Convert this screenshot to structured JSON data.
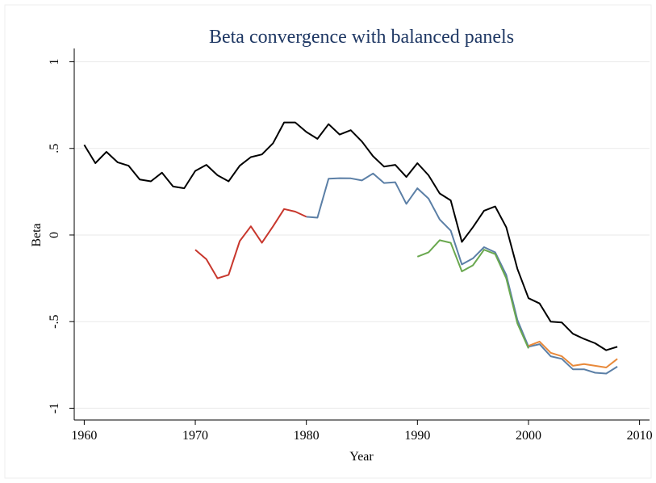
{
  "chart_data": {
    "type": "line",
    "title": "Beta convergence with balanced panels",
    "x_label": "Year",
    "y_label": "Beta",
    "x": [
      1960,
      1961,
      1962,
      1963,
      1964,
      1965,
      1966,
      1967,
      1968,
      1969,
      1970,
      1971,
      1972,
      1973,
      1974,
      1975,
      1976,
      1977,
      1978,
      1979,
      1980,
      1981,
      1982,
      1983,
      1984,
      1985,
      1986,
      1987,
      1988,
      1989,
      1990,
      1991,
      1992,
      1993,
      1994,
      1995,
      1996,
      1997,
      1998,
      1999,
      2000,
      2001,
      2002,
      2003,
      2004,
      2005,
      2006,
      2007,
      2008
    ],
    "series": [
      {
        "color": "#000000",
        "values": [
          0.52,
          0.415,
          0.48,
          0.42,
          0.4,
          0.32,
          0.31,
          0.36,
          0.28,
          0.27,
          0.37,
          0.405,
          0.345,
          0.31,
          0.4,
          0.45,
          0.465,
          0.53,
          0.65,
          0.65,
          0.595,
          0.555,
          0.64,
          0.58,
          0.605,
          0.54,
          0.455,
          0.395,
          0.405,
          0.335,
          0.415,
          0.345,
          0.24,
          0.2,
          -0.04,
          0.045,
          0.14,
          0.165,
          0.045,
          -0.195,
          -0.365,
          -0.395,
          -0.5,
          -0.505,
          -0.57,
          -0.6,
          -0.625,
          -0.665,
          -0.645
        ]
      },
      {
        "color": "#c8372d",
        "values": [
          null,
          null,
          null,
          null,
          null,
          null,
          null,
          null,
          null,
          null,
          -0.085,
          -0.14,
          -0.25,
          -0.23,
          -0.035,
          0.05,
          -0.045,
          0.05,
          0.15,
          0.135,
          0.105,
          null,
          null,
          null,
          null,
          null,
          null,
          null,
          null,
          null,
          null,
          null,
          null,
          null,
          null,
          null,
          null,
          null,
          null,
          null,
          null,
          null,
          null,
          null,
          null,
          null,
          null,
          null,
          null
        ]
      },
      {
        "color": "#5b7fa6",
        "values": [
          null,
          null,
          null,
          null,
          null,
          null,
          null,
          null,
          null,
          null,
          null,
          null,
          null,
          null,
          null,
          null,
          null,
          null,
          null,
          null,
          0.105,
          0.1,
          0.325,
          0.328,
          0.327,
          0.315,
          0.355,
          0.3,
          0.305,
          0.18,
          0.27,
          0.21,
          0.09,
          0.025,
          -0.17,
          -0.135,
          -0.07,
          -0.1,
          -0.23,
          -0.49,
          -0.645,
          -0.63,
          -0.7,
          -0.715,
          -0.775,
          -0.775,
          -0.795,
          -0.8,
          -0.76
        ]
      },
      {
        "color": "#6aa84f",
        "values": [
          null,
          null,
          null,
          null,
          null,
          null,
          null,
          null,
          null,
          null,
          null,
          null,
          null,
          null,
          null,
          null,
          null,
          null,
          null,
          null,
          null,
          null,
          null,
          null,
          null,
          null,
          null,
          null,
          null,
          null,
          -0.125,
          -0.1,
          -0.03,
          -0.045,
          -0.21,
          -0.175,
          -0.085,
          -0.11,
          -0.25,
          -0.51,
          -0.655,
          null,
          null,
          null,
          null,
          null,
          null,
          null,
          null
        ]
      },
      {
        "color": "#e8893a",
        "values": [
          null,
          null,
          null,
          null,
          null,
          null,
          null,
          null,
          null,
          null,
          null,
          null,
          null,
          null,
          null,
          null,
          null,
          null,
          null,
          null,
          null,
          null,
          null,
          null,
          null,
          null,
          null,
          null,
          null,
          null,
          null,
          null,
          null,
          null,
          null,
          null,
          null,
          null,
          null,
          null,
          -0.64,
          -0.615,
          -0.68,
          -0.7,
          -0.755,
          -0.745,
          -0.755,
          -0.765,
          -0.715
        ]
      }
    ],
    "xlim": [
      1959.1,
      2010.9
    ],
    "xticks": [
      1960,
      1970,
      1980,
      1990,
      2000,
      2010
    ],
    "ylim": [
      -1.068,
      1.077
    ],
    "yticks": [
      {
        "value": -1,
        "label": "-1"
      },
      {
        "value": -0.5,
        "label": "-.5"
      },
      0,
      {
        "value": 0.5,
        "label": ".5"
      },
      1
    ],
    "grid": true
  }
}
